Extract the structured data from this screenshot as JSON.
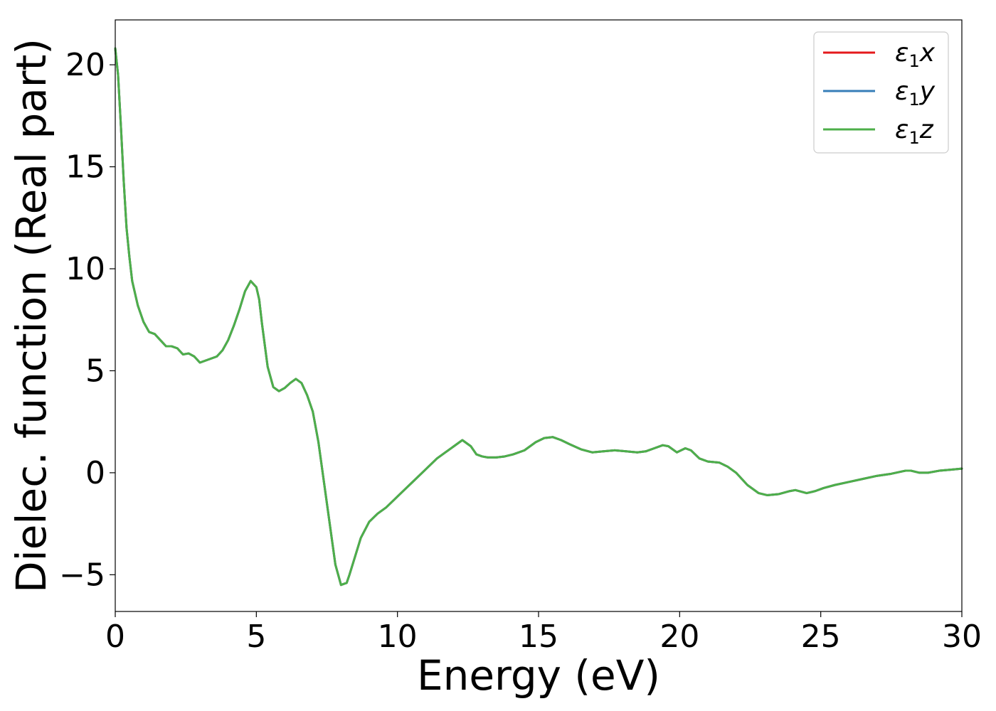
{
  "chart_data": {
    "type": "line",
    "title": "",
    "xlabel": "Energy (eV)",
    "ylabel": "Dielec. function (Real part)",
    "xlim": [
      0,
      30
    ],
    "ylim": [
      -6.8,
      22.2
    ],
    "xticks": [
      0,
      5,
      10,
      15,
      20,
      25,
      30
    ],
    "xtick_labels": [
      "0",
      "5",
      "10",
      "15",
      "20",
      "25",
      "30"
    ],
    "yticks": [
      -5,
      0,
      5,
      10,
      15,
      20
    ],
    "ytick_labels": [
      "−5",
      "0",
      "5",
      "10",
      "15",
      "20"
    ],
    "grid": false,
    "legend_position": "top-right",
    "x": [
      0.0,
      0.1,
      0.2,
      0.3,
      0.4,
      0.5,
      0.6,
      0.8,
      1.0,
      1.2,
      1.4,
      1.6,
      1.8,
      2.0,
      2.2,
      2.4,
      2.6,
      2.8,
      3.0,
      3.2,
      3.4,
      3.6,
      3.8,
      4.0,
      4.2,
      4.4,
      4.6,
      4.8,
      5.0,
      5.1,
      5.2,
      5.4,
      5.6,
      5.8,
      6.0,
      6.2,
      6.4,
      6.6,
      6.8,
      7.0,
      7.2,
      7.4,
      7.6,
      7.8,
      8.0,
      8.2,
      8.3,
      8.5,
      8.7,
      9.0,
      9.3,
      9.6,
      9.9,
      10.2,
      10.5,
      10.8,
      11.1,
      11.4,
      11.7,
      12.0,
      12.3,
      12.6,
      12.8,
      13.0,
      13.2,
      13.5,
      13.8,
      14.1,
      14.5,
      14.9,
      15.2,
      15.5,
      15.8,
      16.1,
      16.5,
      16.9,
      17.3,
      17.7,
      18.1,
      18.5,
      18.8,
      19.1,
      19.4,
      19.6,
      19.9,
      20.2,
      20.4,
      20.7,
      21.0,
      21.4,
      21.7,
      22.0,
      22.4,
      22.8,
      23.1,
      23.5,
      23.9,
      24.1,
      24.5,
      24.8,
      25.1,
      25.5,
      26.0,
      26.5,
      27.0,
      27.5,
      28.0,
      28.2,
      28.5,
      28.8,
      29.2,
      29.6,
      30.0
    ],
    "series": [
      {
        "name": "x",
        "color": "#e41a1c",
        "y": [
          20.8,
          19.5,
          17.0,
          14.3,
          12.0,
          10.6,
          9.4,
          8.2,
          7.4,
          6.9,
          6.8,
          6.5,
          6.2,
          6.2,
          6.1,
          5.8,
          5.85,
          5.7,
          5.4,
          5.5,
          5.6,
          5.7,
          6.0,
          6.5,
          7.2,
          8.0,
          8.9,
          9.4,
          9.1,
          8.5,
          7.3,
          5.2,
          4.2,
          4.0,
          4.15,
          4.4,
          4.6,
          4.4,
          3.8,
          3.0,
          1.5,
          -0.5,
          -2.5,
          -4.5,
          -5.5,
          -5.4,
          -5.0,
          -4.1,
          -3.2,
          -2.4,
          -2.0,
          -1.7,
          -1.3,
          -0.9,
          -0.5,
          -0.1,
          0.3,
          0.7,
          1.0,
          1.3,
          1.6,
          1.3,
          0.9,
          0.8,
          0.75,
          0.75,
          0.8,
          0.9,
          1.1,
          1.5,
          1.7,
          1.75,
          1.6,
          1.4,
          1.15,
          1.0,
          1.05,
          1.1,
          1.05,
          1.0,
          1.05,
          1.2,
          1.35,
          1.3,
          1.0,
          1.2,
          1.1,
          0.7,
          0.55,
          0.5,
          0.3,
          0.0,
          -0.6,
          -1.0,
          -1.1,
          -1.05,
          -0.9,
          -0.85,
          -1.0,
          -0.9,
          -0.75,
          -0.6,
          -0.45,
          -0.3,
          -0.15,
          -0.05,
          0.1,
          0.1,
          0.0,
          0.0,
          0.1,
          0.15,
          0.2
        ]
      },
      {
        "name": "y",
        "color": "#377eb8",
        "y": [
          20.8,
          19.5,
          17.0,
          14.3,
          12.0,
          10.6,
          9.4,
          8.2,
          7.4,
          6.9,
          6.8,
          6.5,
          6.2,
          6.2,
          6.1,
          5.8,
          5.85,
          5.7,
          5.4,
          5.5,
          5.6,
          5.7,
          6.0,
          6.5,
          7.2,
          8.0,
          8.9,
          9.4,
          9.1,
          8.5,
          7.3,
          5.2,
          4.2,
          4.0,
          4.15,
          4.4,
          4.6,
          4.4,
          3.8,
          3.0,
          1.5,
          -0.5,
          -2.5,
          -4.5,
          -5.5,
          -5.4,
          -5.0,
          -4.1,
          -3.2,
          -2.4,
          -2.0,
          -1.7,
          -1.3,
          -0.9,
          -0.5,
          -0.1,
          0.3,
          0.7,
          1.0,
          1.3,
          1.6,
          1.3,
          0.9,
          0.8,
          0.75,
          0.75,
          0.8,
          0.9,
          1.1,
          1.5,
          1.7,
          1.75,
          1.6,
          1.4,
          1.15,
          1.0,
          1.05,
          1.1,
          1.05,
          1.0,
          1.05,
          1.2,
          1.35,
          1.3,
          1.0,
          1.2,
          1.1,
          0.7,
          0.55,
          0.5,
          0.3,
          0.0,
          -0.6,
          -1.0,
          -1.1,
          -1.05,
          -0.9,
          -0.85,
          -1.0,
          -0.9,
          -0.75,
          -0.6,
          -0.45,
          -0.3,
          -0.15,
          -0.05,
          0.1,
          0.1,
          0.0,
          0.0,
          0.1,
          0.15,
          0.2
        ]
      },
      {
        "name": "z",
        "color": "#4daf4a",
        "y": [
          20.8,
          19.5,
          17.0,
          14.3,
          12.0,
          10.6,
          9.4,
          8.2,
          7.4,
          6.9,
          6.8,
          6.5,
          6.2,
          6.2,
          6.1,
          5.8,
          5.85,
          5.7,
          5.4,
          5.5,
          5.6,
          5.7,
          6.0,
          6.5,
          7.2,
          8.0,
          8.9,
          9.4,
          9.1,
          8.5,
          7.3,
          5.2,
          4.2,
          4.0,
          4.15,
          4.4,
          4.6,
          4.4,
          3.8,
          3.0,
          1.5,
          -0.5,
          -2.5,
          -4.5,
          -5.5,
          -5.4,
          -5.0,
          -4.1,
          -3.2,
          -2.4,
          -2.0,
          -1.7,
          -1.3,
          -0.9,
          -0.5,
          -0.1,
          0.3,
          0.7,
          1.0,
          1.3,
          1.6,
          1.3,
          0.9,
          0.8,
          0.75,
          0.75,
          0.8,
          0.9,
          1.1,
          1.5,
          1.7,
          1.75,
          1.6,
          1.4,
          1.15,
          1.0,
          1.05,
          1.1,
          1.05,
          1.0,
          1.05,
          1.2,
          1.35,
          1.3,
          1.0,
          1.2,
          1.1,
          0.7,
          0.55,
          0.5,
          0.3,
          0.0,
          -0.6,
          -1.0,
          -1.1,
          -1.05,
          -0.9,
          -0.85,
          -1.0,
          -0.9,
          -0.75,
          -0.6,
          -0.45,
          -0.3,
          -0.15,
          -0.05,
          0.1,
          0.1,
          0.0,
          0.0,
          0.1,
          0.15,
          0.2
        ]
      }
    ],
    "legend_symbol": "ε",
    "legend_subscript": "1"
  }
}
